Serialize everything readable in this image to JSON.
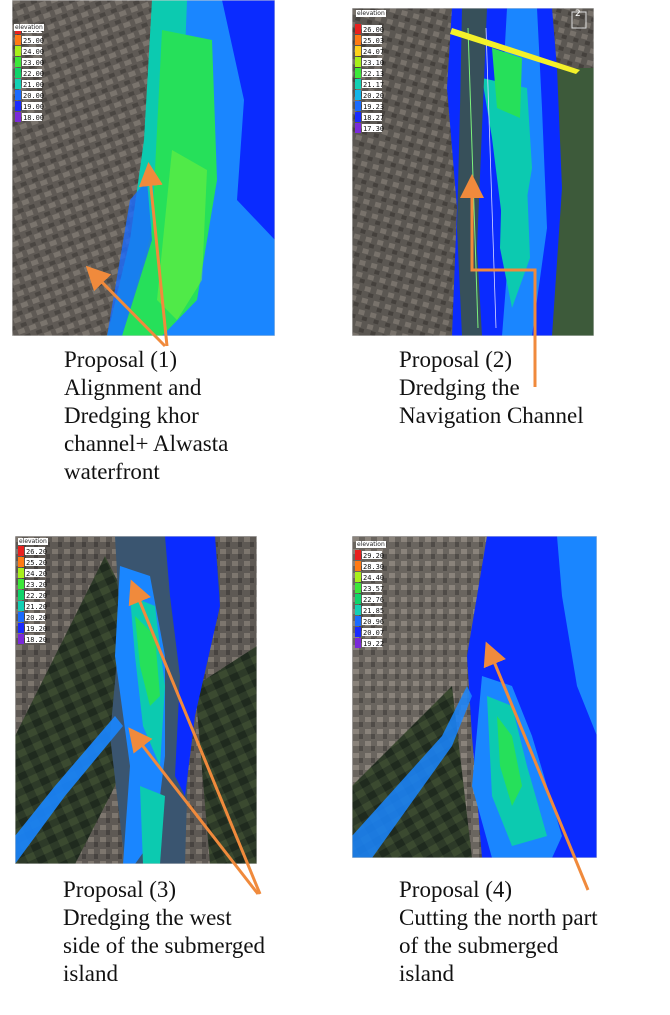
{
  "colors": {
    "arrow": "#f08a3c",
    "urban": "#5f5a55",
    "water_deep": "#0a2bff",
    "water_mid": "#1a86ff",
    "water_teal": "#0ccab0",
    "water_green": "#26e05a",
    "water_lime": "#72f23a"
  },
  "legend_colors": [
    "#e8201e",
    "#ff7a14",
    "#ffd21a",
    "#a8f01a",
    "#3ce83a",
    "#0fd46a",
    "#12d0b4",
    "#13b5e8",
    "#1a6bff",
    "#1a2aff",
    "#7a2ad8"
  ],
  "panels": [
    {
      "legend_title": "elevation",
      "legend_values": [
        "26.00",
        "25.00",
        "24.00",
        "23.00",
        "22.00",
        "21.00",
        "20.00",
        "19.00",
        "18.00"
      ],
      "caption_lines": [
        "Proposal (1)",
        "Alignment and",
        "Dredging khor",
        "channel+ Alwasta",
        "waterfront"
      ]
    },
    {
      "legend_title": "elevation",
      "legend_values": [
        "26.00",
        "25.03",
        "24.07",
        "23.10",
        "22.13",
        "21.17",
        "20.20",
        "19.23",
        "18.27",
        "17.30"
      ],
      "map_label": "2",
      "caption_lines": [
        "Proposal (2)",
        "Dredging the",
        "Navigation Channel"
      ]
    },
    {
      "legend_title": "elevation",
      "legend_values": [
        "26.20",
        "25.20",
        "24.20",
        "23.20",
        "22.20",
        "21.20",
        "20.20",
        "19.20",
        "18.20"
      ],
      "caption_lines": [
        "Proposal (3)",
        "Dredging the west",
        "side of the submerged",
        "island"
      ]
    },
    {
      "legend_title": "elevation",
      "legend_values": [
        "29.20",
        "28.30",
        "24.40",
        "23.57",
        "22.76",
        "21.85",
        "20.96",
        "20.07",
        "19.22"
      ],
      "caption_lines": [
        "Proposal (4)",
        "Cutting the north part",
        "of the submerged",
        "island"
      ]
    }
  ]
}
